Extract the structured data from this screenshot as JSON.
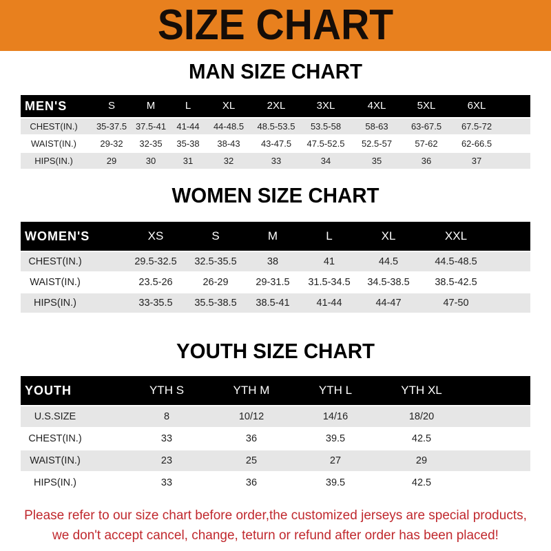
{
  "title": "SIZE CHART",
  "colors": {
    "banner": "#e8801e",
    "header_row": "#000000",
    "stripe": "#e6e6e6",
    "notice": "#c0282d"
  },
  "tables": [
    {
      "title": "MAN SIZE CHART",
      "label": "MEN'S",
      "columns": [
        "S",
        "M",
        "L",
        "XL",
        "2XL",
        "3XL",
        "4XL",
        "5XL",
        "6XL"
      ],
      "rows": [
        {
          "label": "CHEST(IN.)",
          "values": [
            "35-37.5",
            "37.5-41",
            "41-44",
            "44-48.5",
            "48.5-53.5",
            "53.5-58",
            "58-63",
            "63-67.5",
            "67.5-72"
          ]
        },
        {
          "label": "WAIST(IN.)",
          "values": [
            "29-32",
            "32-35",
            "35-38",
            "38-43",
            "43-47.5",
            "47.5-52.5",
            "52.5-57",
            "57-62",
            "62-66.5"
          ]
        },
        {
          "label": "HIPS(IN.)",
          "values": [
            "29",
            "30",
            "31",
            "32",
            "33",
            "34",
            "35",
            "36",
            "37"
          ]
        }
      ]
    },
    {
      "title": "WOMEN SIZE CHART",
      "label": "WOMEN'S",
      "columns": [
        "XS",
        "S",
        "M",
        "L",
        "XL",
        "XXL"
      ],
      "rows": [
        {
          "label": "CHEST(IN.)",
          "values": [
            "29.5-32.5",
            "32.5-35.5",
            "38",
            "41",
            "44.5",
            "44.5-48.5"
          ]
        },
        {
          "label": "WAIST(IN.)",
          "values": [
            "23.5-26",
            "26-29",
            "29-31.5",
            "31.5-34.5",
            "34.5-38.5",
            "38.5-42.5"
          ]
        },
        {
          "label": "HIPS(IN.)",
          "values": [
            "33-35.5",
            "35.5-38.5",
            "38.5-41",
            "41-44",
            "44-47",
            "47-50"
          ]
        }
      ]
    },
    {
      "title": "YOUTH SIZE CHART",
      "label": "YOUTH",
      "columns": [
        "YTH S",
        "YTH M",
        "YTH L",
        "YTH XL"
      ],
      "rows": [
        {
          "label": "U.S.SIZE",
          "values": [
            "8",
            "10/12",
            "14/16",
            "18/20"
          ]
        },
        {
          "label": "CHEST(IN.)",
          "values": [
            "33",
            "36",
            "39.5",
            "42.5"
          ]
        },
        {
          "label": "WAIST(IN.)",
          "values": [
            "23",
            "25",
            "27",
            "29"
          ]
        },
        {
          "label": "HIPS(IN.)",
          "values": [
            "33",
            "36",
            "39.5",
            "42.5"
          ]
        }
      ]
    }
  ],
  "notice": {
    "line1": "Please refer to our size chart before order,the customized jerseys are special products,",
    "line2": "we don't accept cancel, change, teturn or refund after order has been placed!"
  }
}
